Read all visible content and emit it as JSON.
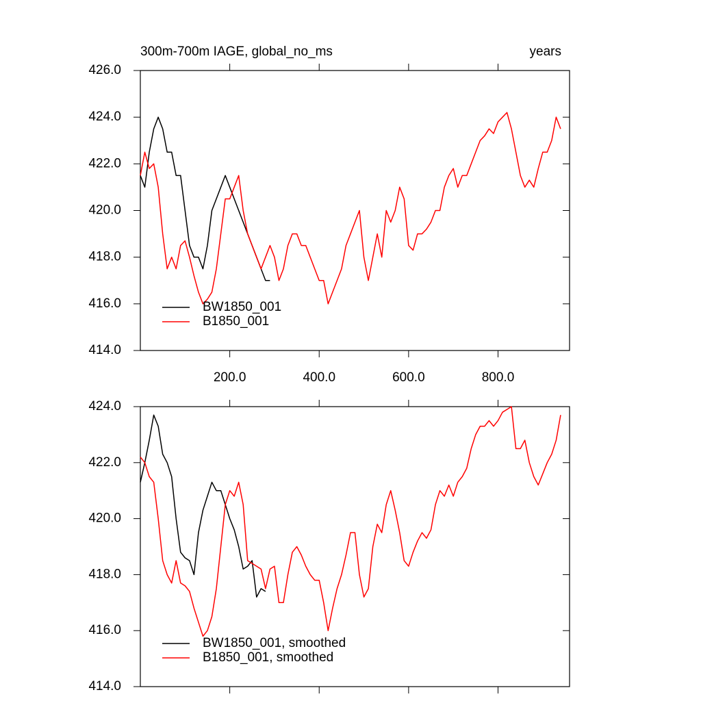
{
  "chart_data": [
    {
      "type": "line",
      "title": "300m-700m IAGE, global_no_ms",
      "subtitle": "years",
      "x": [
        0,
        10,
        20,
        30,
        40,
        50,
        60,
        70,
        80,
        90,
        100,
        110,
        120,
        130,
        140,
        150,
        160,
        170,
        180,
        190,
        200,
        210,
        220,
        230,
        240,
        250,
        260,
        270,
        280,
        290,
        300,
        310,
        320,
        330,
        340,
        350,
        360,
        370,
        380,
        390,
        400,
        410,
        420,
        430,
        440,
        450,
        460,
        470,
        480,
        490,
        500,
        510,
        520,
        530,
        540,
        550,
        560,
        570,
        580,
        590,
        600,
        610,
        620,
        630,
        640,
        650,
        660,
        670,
        680,
        690,
        700,
        710,
        720,
        730,
        740,
        750,
        760,
        770,
        780,
        790,
        800,
        810,
        820,
        830,
        840,
        850,
        860,
        870,
        880,
        890,
        900,
        910,
        920,
        930,
        940
      ],
      "series": [
        {
          "name": "BW1850_001",
          "color": "#000000",
          "values": [
            421.5,
            421,
            422.5,
            423.5,
            424,
            423.5,
            422.5,
            422.5,
            421.5,
            421.5,
            420,
            418.5,
            418,
            418,
            417.5,
            418.5,
            420,
            420.5,
            421,
            421.5,
            421,
            420.5,
            420,
            419.5,
            419,
            418.5,
            418,
            417.5,
            417,
            417,
            null,
            null,
            null,
            null,
            null,
            null,
            null,
            null,
            null,
            null,
            null,
            null,
            null,
            null,
            null,
            null,
            null,
            null,
            null,
            null,
            null,
            null,
            null,
            null,
            null,
            null,
            null,
            null,
            null,
            null,
            null,
            null,
            null,
            null,
            null,
            null,
            null,
            null,
            null,
            null,
            null,
            null,
            null,
            null,
            null,
            null,
            null,
            null,
            null,
            null,
            null,
            null,
            null,
            null,
            null,
            null,
            null,
            null,
            null,
            null,
            null,
            null,
            null,
            null,
            null
          ]
        },
        {
          "name": "B1850_001",
          "color": "#ff0000",
          "values": [
            421.5,
            422.5,
            421.8,
            422,
            421,
            419,
            417.5,
            418,
            417.5,
            418.5,
            418.7,
            418,
            417.2,
            416.5,
            416,
            416.2,
            416.5,
            417.5,
            419,
            420.5,
            420.5,
            421,
            421.5,
            420,
            419,
            418.5,
            418,
            417.5,
            418,
            418.5,
            418,
            417,
            417.5,
            418.5,
            419,
            419,
            418.5,
            418.5,
            418,
            417.5,
            417,
            417,
            416,
            416.5,
            417,
            417.5,
            418.5,
            419,
            419.5,
            420,
            418,
            417,
            418,
            419,
            418,
            420,
            419.5,
            420,
            421,
            420.5,
            418.5,
            418.3,
            419,
            419,
            419.2,
            419.5,
            420,
            420,
            421,
            421.5,
            421.8,
            421,
            421.5,
            421.5,
            422,
            422.5,
            423,
            423.2,
            423.5,
            423.3,
            423.8,
            424,
            424.2,
            423.5,
            422.5,
            421.5,
            421,
            421.3,
            421,
            421.8,
            422.5,
            422.5,
            423,
            424,
            423.5
          ]
        }
      ],
      "xlim": [
        0,
        960
      ],
      "ylim": [
        414,
        426
      ],
      "xticks": [
        {
          "value": 200,
          "label": "200.0"
        },
        {
          "value": 400,
          "label": "400.0"
        },
        {
          "value": 600,
          "label": "600.0"
        },
        {
          "value": 800,
          "label": "800.0"
        }
      ],
      "yticks": [
        {
          "value": 414,
          "label": "414.0"
        },
        {
          "value": 416,
          "label": "416.0"
        },
        {
          "value": 418,
          "label": "418.0"
        },
        {
          "value": 420,
          "label": "420.0"
        },
        {
          "value": 422,
          "label": "422.0"
        },
        {
          "value": 424,
          "label": "424.0"
        },
        {
          "value": 426,
          "label": "426.0"
        }
      ],
      "xtick_labels": true,
      "legend": "lower left"
    },
    {
      "type": "line",
      "x": [
        0,
        10,
        20,
        30,
        40,
        50,
        60,
        70,
        80,
        90,
        100,
        110,
        120,
        130,
        140,
        150,
        160,
        170,
        180,
        190,
        200,
        210,
        220,
        230,
        240,
        250,
        260,
        270,
        280,
        290,
        300,
        310,
        320,
        330,
        340,
        350,
        360,
        370,
        380,
        390,
        400,
        410,
        420,
        430,
        440,
        450,
        460,
        470,
        480,
        490,
        500,
        510,
        520,
        530,
        540,
        550,
        560,
        570,
        580,
        590,
        600,
        610,
        620,
        630,
        640,
        650,
        660,
        670,
        680,
        690,
        700,
        710,
        720,
        730,
        740,
        750,
        760,
        770,
        780,
        790,
        800,
        810,
        820,
        830,
        840,
        850,
        860,
        870,
        880,
        890,
        900,
        910,
        920,
        930,
        940
      ],
      "series": [
        {
          "name": "BW1850_001, smoothed",
          "color": "#000000",
          "values": [
            421.3,
            422,
            422.8,
            423.7,
            423.3,
            422.3,
            422,
            421.5,
            420,
            418.8,
            418.6,
            418.5,
            418,
            419.5,
            420.3,
            420.8,
            421.3,
            421,
            421,
            420.5,
            420,
            419.6,
            419,
            418.2,
            418.3,
            418.5,
            417.2,
            417.5,
            417.4,
            null,
            null,
            null,
            null,
            null,
            null,
            null,
            null,
            null,
            null,
            null,
            null,
            null,
            null,
            null,
            null,
            null,
            null,
            null,
            null,
            null,
            null,
            null,
            null,
            null,
            null,
            null,
            null,
            null,
            null,
            null,
            null,
            null,
            null,
            null,
            null,
            null,
            null,
            null,
            null,
            null,
            null,
            null,
            null,
            null,
            null,
            null,
            null,
            null,
            null,
            null,
            null,
            null,
            null,
            null,
            null,
            null,
            null,
            null,
            null,
            null,
            null,
            null,
            null,
            null,
            null
          ]
        },
        {
          "name": "B1850_001, smoothed",
          "color": "#ff0000",
          "values": [
            422.2,
            422,
            421.5,
            421.3,
            420,
            418.5,
            418,
            417.7,
            418.5,
            417.7,
            417.6,
            417.4,
            416.8,
            416.3,
            415.8,
            416,
            416.5,
            417.5,
            419,
            420.5,
            421,
            420.8,
            421.3,
            420.5,
            418.5,
            418.4,
            418.3,
            418.2,
            417.5,
            418.2,
            418.3,
            417,
            417,
            418,
            418.8,
            419,
            418.7,
            418.3,
            418,
            417.8,
            417.8,
            417,
            416,
            416.8,
            417.5,
            418,
            418.7,
            419.5,
            419.5,
            418,
            417.2,
            417.5,
            419,
            419.8,
            419.5,
            420.5,
            421,
            420.3,
            419.5,
            418.5,
            418.3,
            418.8,
            419.2,
            419.5,
            419.3,
            419.6,
            420.5,
            421,
            420.8,
            421.2,
            420.8,
            421.3,
            421.5,
            421.8,
            422.5,
            423,
            423.3,
            423.3,
            423.5,
            423.3,
            423.5,
            423.8,
            423.9,
            424,
            422.5,
            422.5,
            422.8,
            422,
            421.5,
            421.2,
            421.6,
            422,
            422.3,
            422.8,
            423.7
          ]
        }
      ],
      "xlim": [
        0,
        960
      ],
      "ylim": [
        414,
        424
      ],
      "xticks": [
        200,
        400,
        600,
        800
      ],
      "yticks": [
        {
          "value": 414,
          "label": "414.0"
        },
        {
          "value": 416,
          "label": "416.0"
        },
        {
          "value": 418,
          "label": "418.0"
        },
        {
          "value": 420,
          "label": "420.0"
        },
        {
          "value": 422,
          "label": "422.0"
        },
        {
          "value": 424,
          "label": "424.0"
        }
      ],
      "xtick_labels": false,
      "legend": "lower left"
    }
  ]
}
